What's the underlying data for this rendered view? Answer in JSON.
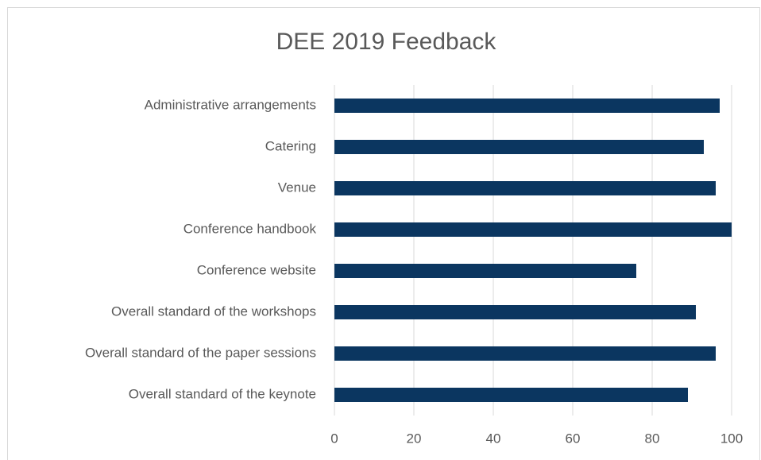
{
  "chart_data": {
    "type": "bar",
    "orientation": "horizontal",
    "title": "DEE 2019 Feedback",
    "categories": [
      "Administrative arrangements",
      "Catering",
      "Venue",
      "Conference handbook",
      "Conference website",
      "Overall standard of the workshops",
      "Overall standard of the paper sessions",
      "Overall standard of the keynote"
    ],
    "values": [
      97,
      93,
      96,
      100,
      76,
      91,
      96,
      89
    ],
    "color": "#0b3660",
    "xlim": [
      0,
      100
    ],
    "xticks": [
      0,
      20,
      40,
      60,
      80,
      100
    ],
    "grid": true
  }
}
